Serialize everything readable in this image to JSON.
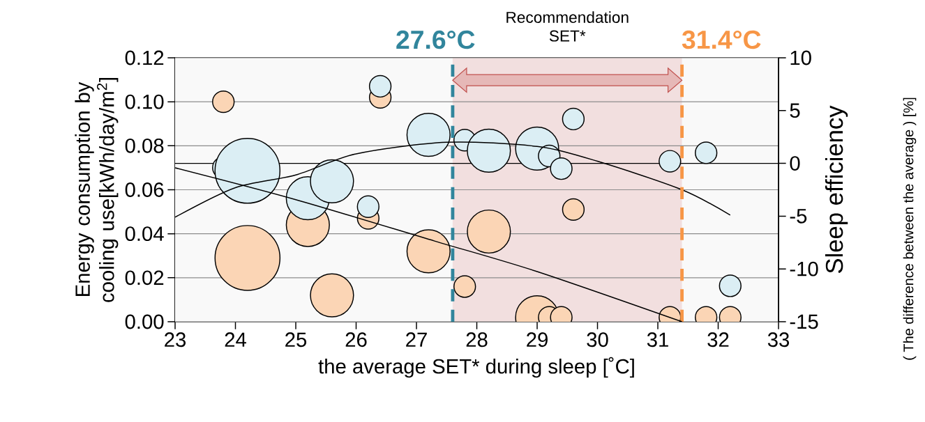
{
  "chart_data": {
    "type": "bubble",
    "xlabel": "the average SET* during sleep [˚C]",
    "ylabel": "Energy consumption by cooling use[kWh/day/m$^{2}$]",
    "y2label": "Sleep efficiency",
    "annotations": [
      "( The difference between the average )  [%]"
    ],
    "xlim": [
      23,
      33
    ],
    "xticks": [
      23,
      24,
      25,
      26,
      27,
      28,
      29,
      30,
      31,
      32,
      33
    ],
    "ylim": [
      0,
      0.12
    ],
    "yticks": [
      {
        "value": 0,
        "label": "0.00"
      },
      {
        "value": 0.02,
        "label": "0.02"
      },
      {
        "value": 0.04,
        "label": "0.04"
      },
      {
        "value": 0.06,
        "label": "0.06"
      },
      {
        "value": 0.08,
        "label": "0.08"
      },
      {
        "value": 0.1,
        "label": "0.10"
      },
      {
        "value": 0.12,
        "label": "0.12"
      }
    ],
    "y2lim": [
      -15,
      10
    ],
    "y2ticks": [
      -15,
      -10,
      -5,
      0,
      5,
      10
    ],
    "grid": "y",
    "marker": "circle",
    "series": [
      {
        "axis": "y",
        "color": "#fbd5b5",
        "x": [
          23.8,
          24.2,
          25.2,
          25.6,
          26.2,
          26.4,
          27.2,
          27.8,
          28.2,
          29.0,
          29.2,
          29.4,
          29.6,
          31.2,
          31.8,
          32.2
        ],
        "values": [
          0.1,
          0.029,
          0.044,
          0.012,
          0.047,
          0.102,
          0.032,
          0.016,
          0.041,
          0.002,
          0.002,
          0.002,
          0.051,
          0.002,
          0.002,
          0.002
        ],
        "sizes": [
          0.11,
          1,
          0.44,
          0.44,
          0.11,
          0.11,
          0.44,
          0.11,
          0.44,
          0.44,
          0.11,
          0.11,
          0.11,
          0.11,
          0.11,
          0.11
        ]
      },
      {
        "axis": "y2",
        "color": "#dbeef4",
        "x": [
          23.8,
          24.2,
          25.2,
          25.6,
          26.2,
          26.4,
          27.2,
          27.8,
          28.2,
          29.0,
          29.2,
          29.4,
          29.6,
          31.2,
          31.8,
          32.2
        ],
        "values": [
          -0.4,
          -0.7,
          -3.3,
          -1.7,
          -4.1,
          7.3,
          2.7,
          2.2,
          1.2,
          1.4,
          0.7,
          -0.5,
          4.2,
          0.2,
          1.0,
          -11.6
        ],
        "sizes": [
          0.11,
          1,
          0.44,
          0.44,
          0.11,
          0.11,
          0.44,
          0.11,
          0.44,
          0.44,
          0.11,
          0.11,
          0.11,
          0.11,
          0.11,
          0.11
        ]
      },
      {
        "type": "line",
        "marker": "none",
        "axis": "y",
        "color": "#000000",
        "x": [
          23,
          25,
          27.3,
          29,
          31.4
        ],
        "values": [
          0.07,
          0.0555,
          0.0367,
          0.0228,
          0.0
        ]
      },
      {
        "type": "line",
        "marker": "none",
        "axis": "y2",
        "color": "#000000",
        "x": [
          23,
          24,
          25,
          26,
          27.5,
          29,
          30,
          31.4,
          32.2
        ],
        "values": [
          -5.1,
          -2.3,
          -1.1,
          0.9,
          2.0,
          1.6,
          0.2,
          -2.5,
          -4.9
        ]
      }
    ],
    "ref_lines": [
      {
        "axis": "y2",
        "value": 0,
        "color": "#000000",
        "line_style": "solid"
      },
      {
        "axis": "x",
        "value": 27.6,
        "label": "27.6°C",
        "color": "#31859c",
        "line_style": "dashed"
      },
      {
        "axis": "x",
        "value": 31.4,
        "label": "31.4°C",
        "color": "#f79646",
        "line_style": "dashed"
      }
    ],
    "bands": [
      {
        "axis": "x",
        "from": 27.6,
        "to": 31.4,
        "label": "Recommendation SET*",
        "color": "#f2dfdf"
      }
    ]
  }
}
